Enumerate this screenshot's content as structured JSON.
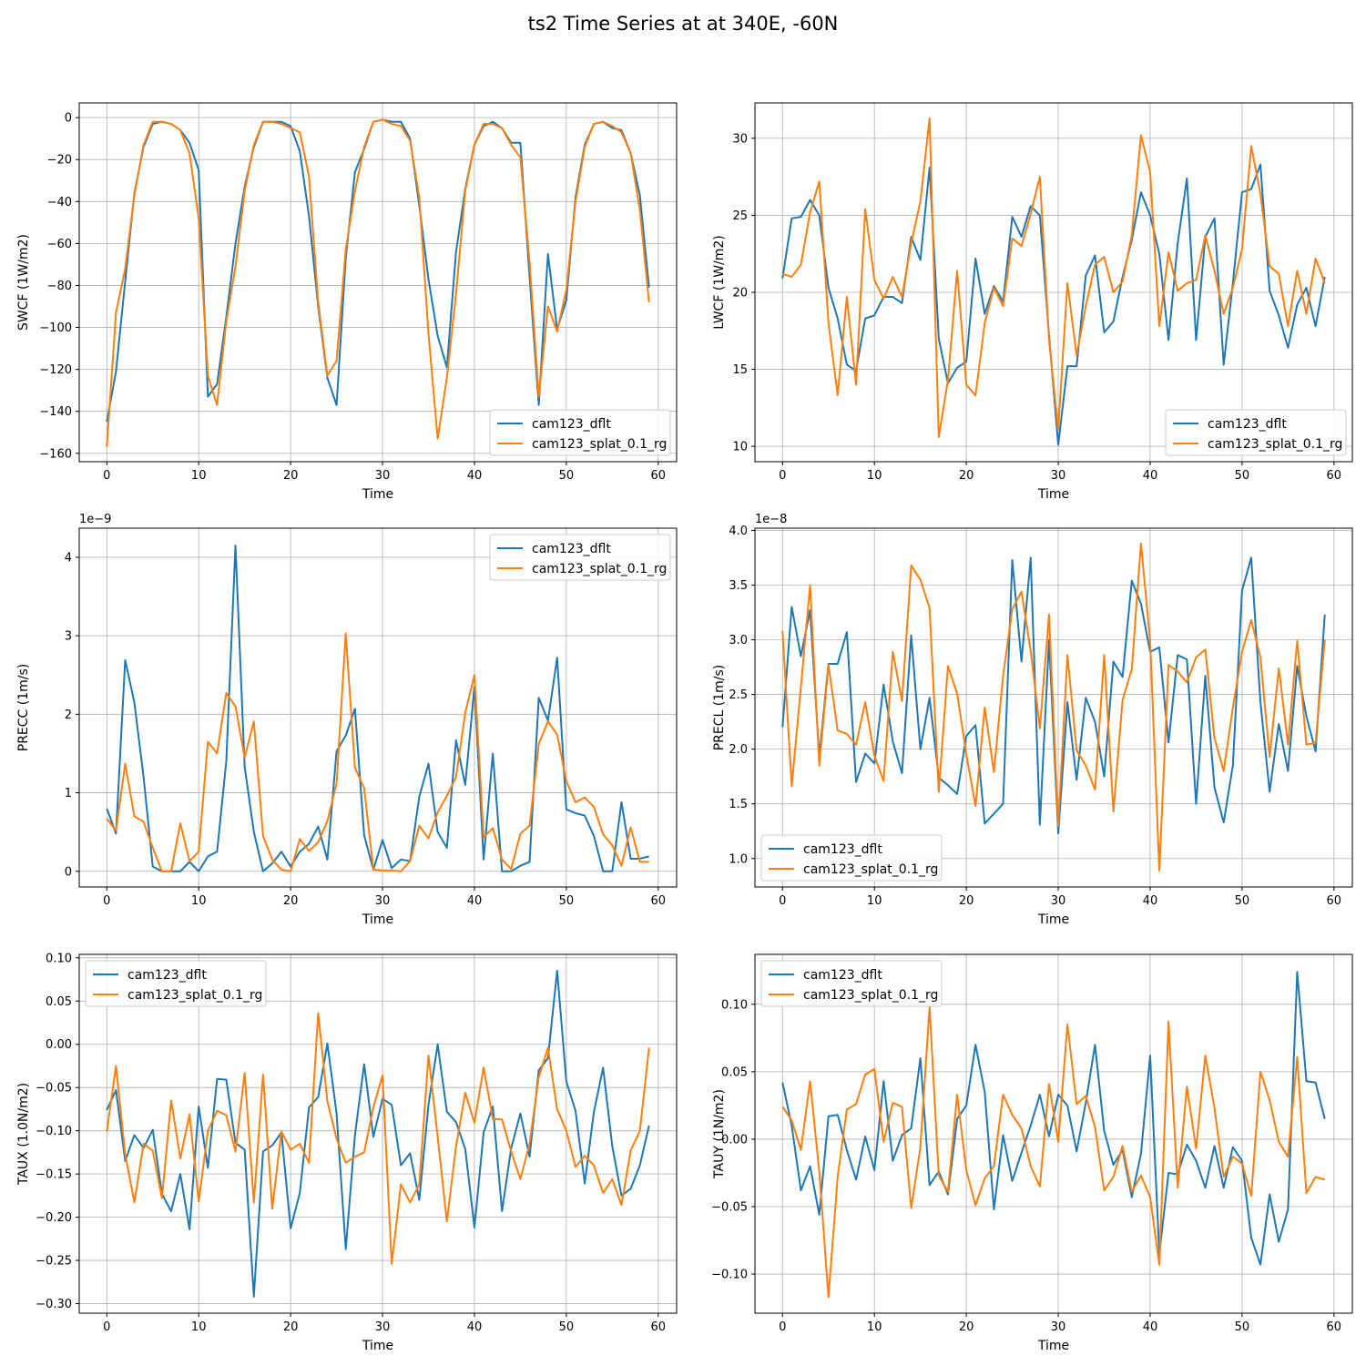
{
  "figure_title": "ts2 Time Series at at 340E, -60N",
  "colors": {
    "series_a": "#1f77b4",
    "series_b": "#ff7f0e",
    "grid": "#b0b0b0"
  },
  "chart_data": [
    {
      "type": "line",
      "xlabel": "Time",
      "ylabel": "SWCF (1W/m2)",
      "xlim": [
        -3,
        62
      ],
      "ylim": [
        -164,
        7
      ],
      "xticks": [
        0,
        10,
        20,
        30,
        40,
        50,
        60
      ],
      "yticks": [
        0,
        -20,
        -40,
        -60,
        -80,
        -100,
        -120,
        -140,
        -160
      ],
      "offset_label": "",
      "legend_loc": "lower-right",
      "series": [
        {
          "name": "cam123_dflt",
          "values": [
            -145,
            -121,
            -78,
            -36,
            -14,
            -3,
            -2,
            -3,
            -6,
            -12,
            -25,
            -133,
            -127,
            -95,
            -60,
            -33,
            -14,
            -2,
            -2,
            -2,
            -4,
            -16,
            -47,
            -90,
            -124,
            -137,
            -67,
            -26,
            -15,
            -2,
            -1,
            -2,
            -2,
            -10,
            -42,
            -77,
            -104,
            -119,
            -64,
            -34,
            -13,
            -4,
            -2,
            -5,
            -12,
            -12,
            -76,
            -137,
            -65,
            -101,
            -87,
            -38,
            -13,
            -3,
            -2,
            -5,
            -6,
            -17,
            -37,
            -81
          ]
        },
        {
          "name": "cam123_splat_0.1_rg",
          "values": [
            -157,
            -93,
            -72,
            -37,
            -13,
            -2,
            -2,
            -3,
            -6,
            -17,
            -48,
            -123,
            -137,
            -97,
            -71,
            -35,
            -13,
            -2,
            -2,
            -3,
            -5,
            -7,
            -28,
            -88,
            -123,
            -116,
            -63,
            -35,
            -14,
            -2,
            -1,
            -3,
            -4,
            -11,
            -38,
            -103,
            -153,
            -124,
            -84,
            -35,
            -13,
            -3,
            -3,
            -5,
            -13,
            -19,
            -69,
            -133,
            -90,
            -102,
            -82,
            -40,
            -14,
            -3,
            -2,
            -4,
            -7,
            -17,
            -44,
            -88
          ]
        }
      ]
    },
    {
      "type": "line",
      "xlabel": "Time",
      "ylabel": "LWCF (1W/m2)",
      "xlim": [
        -3,
        62
      ],
      "ylim": [
        9,
        32.3
      ],
      "xticks": [
        0,
        10,
        20,
        30,
        40,
        50,
        60
      ],
      "yticks": [
        10,
        15,
        20,
        25,
        30
      ],
      "offset_label": "",
      "legend_loc": "lower-right",
      "series": [
        {
          "name": "cam123_dflt",
          "values": [
            20.9,
            24.8,
            24.9,
            26.0,
            25.0,
            20.3,
            18.3,
            15.3,
            14.9,
            18.3,
            18.5,
            19.7,
            19.7,
            19.3,
            23.6,
            22.1,
            28.1,
            17.0,
            14.1,
            15.1,
            15.5,
            22.2,
            18.6,
            20.4,
            19.4,
            24.9,
            23.6,
            25.6,
            25.0,
            17.2,
            10.1,
            15.2,
            15.2,
            21.1,
            22.4,
            17.4,
            18.1,
            21.0,
            23.4,
            26.5,
            25.0,
            22.5,
            16.9,
            23.2,
            27.4,
            16.9,
            23.6,
            24.8,
            15.3,
            20.6,
            26.5,
            26.7,
            28.3,
            20.1,
            18.5,
            16.4,
            19.2,
            20.3,
            17.8,
            21.0
          ]
        },
        {
          "name": "cam123_splat_0.1_rg",
          "values": [
            21.2,
            21.0,
            21.8,
            25.2,
            27.2,
            18.0,
            13.3,
            19.7,
            14.0,
            25.4,
            20.8,
            19.6,
            21.0,
            19.7,
            23.2,
            25.9,
            31.3,
            10.6,
            14.3,
            21.4,
            14.0,
            13.3,
            18.0,
            20.3,
            19.1,
            23.5,
            23.0,
            25.1,
            27.5,
            16.9,
            11.1,
            20.6,
            15.9,
            19.1,
            21.8,
            22.3,
            20.0,
            20.7,
            23.7,
            30.2,
            27.8,
            17.8,
            22.6,
            20.1,
            20.6,
            20.8,
            23.7,
            21.4,
            18.6,
            20.3,
            22.8,
            29.5,
            26.4,
            21.7,
            21.2,
            17.8,
            21.4,
            18.6,
            22.2,
            20.6
          ]
        }
      ]
    },
    {
      "type": "line",
      "xlabel": "Time",
      "ylabel": "PRECC (1m/s)",
      "xlim": [
        -3,
        62
      ],
      "ylim": [
        -0.2,
        4.37
      ],
      "xticks": [
        0,
        10,
        20,
        30,
        40,
        50,
        60
      ],
      "yticks": [
        0,
        1,
        2,
        3,
        4
      ],
      "offset_label": "1e−9",
      "legend_loc": "upper-right",
      "series": [
        {
          "name": "cam123_dflt",
          "values": [
            0.8,
            0.48,
            2.69,
            2.15,
            1.2,
            0.06,
            0.0,
            0.0,
            0.0,
            0.12,
            0.0,
            0.19,
            0.25,
            1.4,
            4.15,
            1.33,
            0.5,
            0.0,
            0.1,
            0.25,
            0.06,
            0.25,
            0.35,
            0.57,
            0.15,
            1.53,
            1.73,
            2.07,
            0.46,
            0.02,
            0.4,
            0.04,
            0.15,
            0.13,
            0.95,
            1.37,
            0.5,
            0.3,
            1.67,
            1.1,
            2.35,
            0.15,
            1.5,
            0.0,
            0.0,
            0.07,
            0.12,
            2.21,
            1.92,
            2.72,
            0.79,
            0.74,
            0.71,
            0.45,
            0.0,
            0.0,
            0.88,
            0.16,
            0.16,
            0.19
          ]
        },
        {
          "name": "cam123_splat_0.1_rg",
          "values": [
            0.67,
            0.52,
            1.37,
            0.7,
            0.63,
            0.3,
            0.0,
            0.0,
            0.61,
            0.13,
            0.25,
            1.65,
            1.5,
            2.27,
            2.1,
            1.45,
            1.91,
            0.45,
            0.15,
            0.02,
            0.0,
            0.41,
            0.26,
            0.37,
            0.64,
            1.12,
            3.03,
            1.32,
            1.06,
            0.02,
            0.01,
            0.01,
            0.0,
            0.13,
            0.58,
            0.42,
            0.75,
            0.96,
            1.2,
            2.02,
            2.5,
            0.43,
            0.55,
            0.15,
            0.03,
            0.48,
            0.58,
            1.62,
            1.91,
            1.74,
            1.15,
            0.88,
            0.94,
            0.82,
            0.47,
            0.33,
            0.07,
            0.56,
            0.12,
            0.12
          ]
        }
      ]
    },
    {
      "type": "line",
      "xlabel": "Time",
      "ylabel": "PRECL (1m/s)",
      "xlim": [
        -3,
        62
      ],
      "ylim": [
        0.74,
        4.02
      ],
      "xticks": [
        0,
        10,
        20,
        30,
        40,
        50,
        60
      ],
      "yticks": [
        1.0,
        1.5,
        2.0,
        2.5,
        3.0,
        3.5,
        4.0
      ],
      "offset_label": "1e−8",
      "legend_loc": "lower-left",
      "series": [
        {
          "name": "cam123_dflt",
          "values": [
            2.2,
            3.3,
            2.85,
            3.27,
            1.93,
            2.78,
            2.78,
            3.07,
            1.7,
            1.96,
            1.87,
            2.59,
            2.07,
            1.78,
            3.04,
            2.0,
            2.47,
            1.74,
            1.67,
            1.59,
            2.12,
            2.22,
            1.32,
            1.41,
            1.5,
            3.73,
            2.8,
            3.75,
            1.31,
            3.0,
            1.23,
            2.43,
            1.72,
            2.47,
            2.25,
            1.75,
            2.8,
            2.66,
            3.54,
            3.33,
            2.89,
            2.93,
            2.06,
            2.86,
            2.82,
            1.5,
            2.67,
            1.65,
            1.33,
            1.85,
            3.45,
            3.75,
            2.43,
            1.61,
            2.23,
            1.8,
            2.76,
            2.3,
            1.98,
            3.23
          ]
        },
        {
          "name": "cam123_splat_0.1_rg",
          "values": [
            3.08,
            1.66,
            2.57,
            3.5,
            1.85,
            2.77,
            2.17,
            2.14,
            2.04,
            2.43,
            1.94,
            1.71,
            2.89,
            2.44,
            3.68,
            3.55,
            3.29,
            1.61,
            2.76,
            2.51,
            1.95,
            1.48,
            2.38,
            1.79,
            2.67,
            3.28,
            3.44,
            2.9,
            2.19,
            3.23,
            1.3,
            2.86,
            1.99,
            1.85,
            1.63,
            2.86,
            1.43,
            2.45,
            2.73,
            3.88,
            2.99,
            0.89,
            2.77,
            2.71,
            2.61,
            2.84,
            2.91,
            2.1,
            1.8,
            2.38,
            2.89,
            3.18,
            2.84,
            1.93,
            2.74,
            2.04,
            2.99,
            2.04,
            2.06,
            3.0
          ]
        }
      ]
    },
    {
      "type": "line",
      "xlabel": "Time",
      "ylabel": "TAUX (1.0N/m2)",
      "xlim": [
        -3,
        62
      ],
      "ylim": [
        -0.311,
        0.104
      ],
      "xticks": [
        0,
        10,
        20,
        30,
        40,
        50,
        60
      ],
      "yticks": [
        0.1,
        0.05,
        0.0,
        -0.05,
        -0.1,
        -0.15,
        -0.2,
        -0.25,
        -0.3
      ],
      "offset_label": "",
      "legend_loc": "upper-left",
      "series": [
        {
          "name": "cam123_dflt",
          "values": [
            -0.076,
            -0.053,
            -0.135,
            -0.105,
            -0.12,
            -0.099,
            -0.173,
            -0.193,
            -0.15,
            -0.214,
            -0.072,
            -0.143,
            -0.04,
            -0.041,
            -0.114,
            -0.122,
            -0.292,
            -0.124,
            -0.117,
            -0.102,
            -0.213,
            -0.172,
            -0.073,
            -0.061,
            0.001,
            -0.08,
            -0.237,
            -0.105,
            -0.023,
            -0.107,
            -0.063,
            -0.07,
            -0.14,
            -0.126,
            -0.18,
            -0.07,
            0.0,
            -0.078,
            -0.09,
            -0.121,
            -0.212,
            -0.102,
            -0.072,
            -0.193,
            -0.12,
            -0.08,
            -0.13,
            -0.03,
            -0.016,
            0.085,
            -0.043,
            -0.077,
            -0.161,
            -0.078,
            -0.027,
            -0.118,
            -0.175,
            -0.167,
            -0.14,
            -0.094
          ]
        },
        {
          "name": "cam123_splat_0.1_rg",
          "values": [
            -0.101,
            -0.025,
            -0.127,
            -0.183,
            -0.115,
            -0.123,
            -0.178,
            -0.065,
            -0.132,
            -0.081,
            -0.182,
            -0.1,
            -0.077,
            -0.082,
            -0.124,
            -0.033,
            -0.183,
            -0.035,
            -0.19,
            -0.101,
            -0.122,
            -0.115,
            -0.137,
            0.036,
            -0.066,
            -0.109,
            -0.137,
            -0.13,
            -0.125,
            -0.073,
            -0.036,
            -0.254,
            -0.162,
            -0.183,
            -0.162,
            -0.013,
            -0.107,
            -0.205,
            -0.118,
            -0.056,
            -0.091,
            -0.027,
            -0.086,
            -0.087,
            -0.124,
            -0.156,
            -0.115,
            -0.038,
            -0.004,
            -0.075,
            -0.1,
            -0.142,
            -0.129,
            -0.14,
            -0.172,
            -0.156,
            -0.186,
            -0.123,
            -0.1,
            -0.004
          ]
        }
      ]
    },
    {
      "type": "line",
      "xlabel": "Time",
      "ylabel": "TAUY (1N/m2)",
      "xlim": [
        -3,
        62
      ],
      "ylim": [
        -0.129,
        0.137
      ],
      "xticks": [
        0,
        10,
        20,
        30,
        40,
        50,
        60
      ],
      "yticks": [
        0.1,
        0.05,
        0.0,
        -0.05,
        -0.1
      ],
      "offset_label": "",
      "legend_loc": "upper-left",
      "series": [
        {
          "name": "cam123_dflt",
          "values": [
            0.042,
            0.01,
            -0.038,
            -0.02,
            -0.056,
            0.017,
            0.018,
            -0.008,
            -0.03,
            0.002,
            -0.023,
            0.043,
            -0.016,
            0.003,
            0.008,
            0.06,
            -0.034,
            -0.024,
            -0.041,
            0.015,
            0.025,
            0.07,
            0.035,
            -0.052,
            0.003,
            -0.031,
            -0.01,
            0.01,
            0.033,
            0.002,
            0.033,
            0.025,
            -0.009,
            0.027,
            0.07,
            0.006,
            -0.019,
            -0.008,
            -0.043,
            -0.011,
            0.062,
            -0.085,
            -0.025,
            -0.026,
            -0.004,
            -0.016,
            -0.036,
            -0.005,
            -0.036,
            -0.006,
            -0.016,
            -0.073,
            -0.093,
            -0.041,
            -0.076,
            -0.052,
            0.124,
            0.043,
            0.042,
            0.015
          ]
        },
        {
          "name": "cam123_splat_0.1_rg",
          "values": [
            0.024,
            0.014,
            -0.008,
            0.043,
            -0.024,
            -0.117,
            -0.028,
            0.022,
            0.026,
            0.048,
            0.052,
            -0.002,
            0.027,
            0.024,
            -0.051,
            -0.006,
            0.098,
            -0.027,
            -0.039,
            0.033,
            -0.023,
            -0.049,
            -0.029,
            -0.02,
            0.033,
            0.018,
            0.008,
            -0.02,
            -0.035,
            0.041,
            -0.002,
            0.085,
            0.026,
            0.032,
            0.009,
            -0.038,
            -0.028,
            -0.005,
            -0.039,
            -0.027,
            -0.043,
            -0.093,
            0.087,
            -0.036,
            0.039,
            -0.007,
            0.062,
            0.023,
            -0.028,
            -0.013,
            -0.018,
            -0.042,
            0.05,
            0.029,
            -0.002,
            -0.013,
            0.061,
            -0.04,
            -0.028,
            -0.03
          ]
        }
      ]
    }
  ]
}
